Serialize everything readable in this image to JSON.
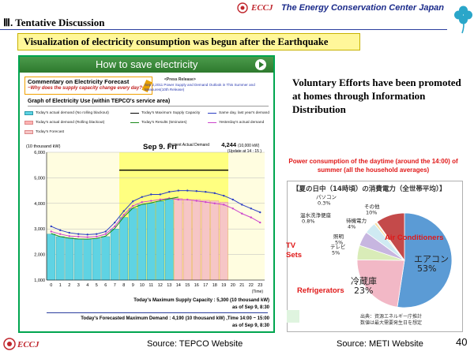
{
  "header": {
    "logo_abbr": "ECCJ",
    "org_name": "The Energy Conservation Center Japan",
    "section_heading": "Ⅲ. Tentative Discussion",
    "banner": "Visualization of electricity consumption was begun after the Earthquake",
    "colors": {
      "brand_red": "#c0262d",
      "brand_blue": "#1a2a8a",
      "clover_blue": "#2aa6c9",
      "banner_yellow": "#fff79a"
    }
  },
  "tepco_panel": {
    "title": "How to save electricity",
    "play_icon": "play-icon",
    "commentary_title": "Commentary on Electricity Forecast",
    "commentary_sub": "~Why does the supply capacity change every day?~",
    "press_release_title": "<Press Release>",
    "press_release_body": "Sep 2,2011  Power Supply and Demand Outlook in This Summer and Measures(10th Release)",
    "graph_title": "Graph of Electricity Use (within TEPCO's service area)",
    "legend": [
      {
        "label": "Today's actual demand (No rolling blackout)",
        "color": "#5fd3e3",
        "kind": "box"
      },
      {
        "label": "Today's Maximum Supply Capacity",
        "color": "#000000",
        "kind": "line"
      },
      {
        "label": "Same day, last year's demand",
        "color": "#2b3ec4",
        "kind": "dotline"
      },
      {
        "label": "Today's actual demand (Rolling blackout)",
        "color": "#ffb3b3",
        "kind": "box"
      },
      {
        "label": "Today's Results (5minutes)",
        "color": "#1a8a1a",
        "kind": "line"
      },
      {
        "label": "Yesterday's actual demand",
        "color": "#cc44cc",
        "kind": "dotline"
      },
      {
        "label": "Today's Forecast",
        "color": "#f6c6c6",
        "kind": "box"
      }
    ],
    "max_supply_text": "Today's Maximum Supply Capacity : 5,300 (10 thousand kW)",
    "max_supply_asof": "as of   Sep   9,  8:30",
    "forecast_text": "Today's Forecasted Maximum Demand : 4,190 (10 thousand kW) ,Time 14:00 ~ 15:00",
    "forecast_asof": "as of   Sep   9,  8:30"
  },
  "chart_data": {
    "type": "bar",
    "title": "Sep  9.  Fri",
    "ylabel": "(10 thousand kW)",
    "xlabel": "(Time)",
    "ylim": [
      1000,
      6000
    ],
    "yticks": [
      "1,000",
      "2,000",
      "3,000",
      "4,000",
      "5,000",
      "6,000"
    ],
    "categories": [
      "0",
      "1",
      "2",
      "3",
      "4",
      "5",
      "6",
      "7",
      "8",
      "9",
      "10",
      "11",
      "12",
      "13",
      "14",
      "15",
      "16",
      "17",
      "18",
      "19",
      "20",
      "21",
      "22",
      "23"
    ],
    "current_demand_label": "Current Actual Demand",
    "current_demand_value": "4,244",
    "current_demand_unit": "(10,000 kW)",
    "update_label": "(Update at  14 : 15 )",
    "max_supply_capacity": 5300,
    "series": [
      {
        "name": "Today's actual demand (No rolling blackout)",
        "values": [
          2800,
          2700,
          2650,
          2600,
          2600,
          2620,
          2700,
          3000,
          3450,
          3800,
          3950,
          4000,
          4080,
          4150,
          null,
          null,
          null,
          null,
          null,
          null,
          null,
          null,
          null,
          null
        ]
      },
      {
        "name": "Today's Forecast",
        "values": [
          null,
          null,
          null,
          null,
          null,
          null,
          null,
          null,
          null,
          null,
          null,
          null,
          null,
          null,
          4190,
          4150,
          4150,
          4120,
          4100,
          4050,
          null,
          null,
          null,
          null
        ]
      },
      {
        "name": "Today's Results (5minutes)",
        "values": [
          2820,
          2700,
          2640,
          2610,
          2600,
          2630,
          2720,
          3020,
          3470,
          3820,
          3960,
          4020,
          4100,
          4180,
          4244,
          null,
          null,
          null,
          null,
          null,
          null,
          null,
          null,
          null
        ]
      },
      {
        "name": "Same day, last year's demand",
        "values": [
          3100,
          2950,
          2850,
          2800,
          2780,
          2800,
          2900,
          3250,
          3700,
          4080,
          4250,
          4350,
          4350,
          4450,
          4500,
          4500,
          4480,
          4450,
          4400,
          4300,
          4150,
          3950,
          3800,
          3650
        ]
      },
      {
        "name": "Yesterday's actual demand",
        "values": [
          2900,
          2800,
          2720,
          2700,
          2680,
          2700,
          2800,
          3100,
          3550,
          3900,
          4050,
          4100,
          4150,
          4200,
          4150,
          4150,
          4100,
          4050,
          4000,
          3950,
          3800,
          3600,
          3450,
          3250
        ]
      }
    ],
    "highlight_window_hours": [
      8,
      20
    ]
  },
  "pie_chart": {
    "title_caption": "Power consumption of the daytime (around the 14:00) of summer (all the household averages)",
    "panel_title": "【夏の日中（14時頃）の消費電力（全世帯平均）】",
    "source_note_1": "出典：資源エネルギー庁推計",
    "source_note_2": "数値は最大需要発生日を想定",
    "chart_data": {
      "type": "pie",
      "slices": [
        {
          "label": "エアコン",
          "value": 53,
          "value_label": "53%",
          "color": "#5b9bd5",
          "english": "Air Conditioners"
        },
        {
          "label": "冷蔵庫",
          "value": 23,
          "value_label": "23%",
          "color": "#f2b8c6",
          "english": "Refrigerators"
        },
        {
          "label": "テレビ",
          "value": 5,
          "value_label": "5%",
          "color": "#d9ecb8",
          "english": "TV Sets"
        },
        {
          "label": "照明",
          "value": 5,
          "value_label": "5%",
          "color": "#c7b6e0",
          "english": ""
        },
        {
          "label": "待機電力",
          "value": 4,
          "value_label": "4%",
          "color": "#cfeaf2",
          "english": ""
        },
        {
          "label": "温水洗浄便座",
          "value": 0.8,
          "value_label": "0.8%",
          "color": "#f7e0a8",
          "english": ""
        },
        {
          "label": "パソコン",
          "value": 0.3,
          "value_label": "0.3%",
          "color": "#b7e3b0",
          "english": ""
        },
        {
          "label": "その他",
          "value": 10,
          "value_label": "10%",
          "color": "#c44a4a",
          "english": ""
        }
      ]
    },
    "overlay_labels": {
      "air_conditioners": "Air Conditioners",
      "tv_sets": "TV\nSets",
      "refrigerators": "Refrigerators"
    }
  },
  "right_heading": "Voluntary Efforts have been promoted at homes through Information Distribution",
  "footer": {
    "source_left": "Source: TEPCO Website",
    "source_right": "Source: METI Website",
    "page_number": "40",
    "logo_abbr": "ECCJ"
  }
}
